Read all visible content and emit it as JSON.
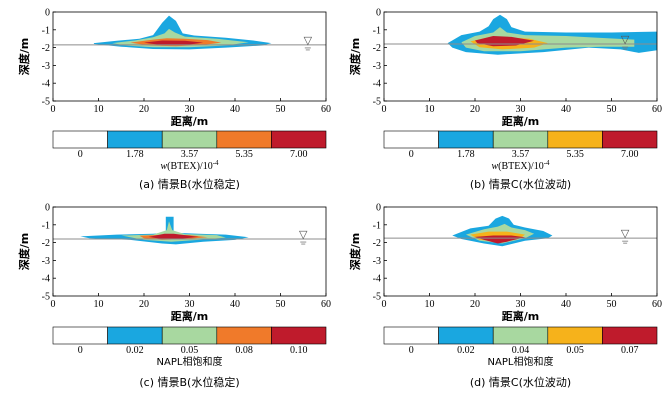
{
  "palette": {
    "axis": "#000000",
    "water_table": "#8c8c8c",
    "bins": [
      "#ffffff",
      "#1aa7e0",
      "#a8d8a0",
      "#f6b21b",
      "#bf1b2c"
    ],
    "orange_bin": "#f07a2a"
  },
  "water_symbol": "▽",
  "chart_data": [
    {
      "type": "heatmap",
      "panel": "a",
      "caption": "(a)  情景B(水位稳定)",
      "xlabel": "距离/m",
      "ylabel": "深度/m",
      "xlim": [
        0,
        60
      ],
      "ylim": [
        -5,
        0
      ],
      "xticks": [
        0,
        10,
        20,
        30,
        40,
        50,
        60
      ],
      "yticks": [
        0,
        -1,
        -2,
        -3,
        -4,
        -5
      ],
      "water_table_depth": -1.85,
      "water_symbol_x": 56,
      "colorbar": {
        "labels": [
          "0",
          "1.78",
          "3.57",
          "5.35",
          "7.00"
        ],
        "colors": [
          "#ffffff",
          "#1aa7e0",
          "#a8d8a0",
          "#f07a2a",
          "#bf1b2c"
        ],
        "title_prefix": "w",
        "title_mid": "(BTEX)/10",
        "title_exp": "-4"
      },
      "layers": [
        {
          "level": 1,
          "points": [
            [
              9,
              -1.75
            ],
            [
              14,
              -1.62
            ],
            [
              19,
              -1.5
            ],
            [
              22,
              -1.3
            ],
            [
              24,
              -0.6
            ],
            [
              25.5,
              -0.2
            ],
            [
              27,
              -0.5
            ],
            [
              28.5,
              -1.2
            ],
            [
              31,
              -1.32
            ],
            [
              38,
              -1.45
            ],
            [
              44,
              -1.6
            ],
            [
              48,
              -1.75
            ],
            [
              46,
              -1.88
            ],
            [
              38,
              -2.0
            ],
            [
              30,
              -2.1
            ],
            [
              22,
              -2.08
            ],
            [
              15,
              -1.95
            ],
            [
              9,
              -1.8
            ]
          ]
        },
        {
          "level": 2,
          "points": [
            [
              13,
              -1.75
            ],
            [
              18,
              -1.6
            ],
            [
              22,
              -1.42
            ],
            [
              24.5,
              -1.2
            ],
            [
              25.5,
              -0.95
            ],
            [
              26.8,
              -1.15
            ],
            [
              29,
              -1.38
            ],
            [
              36,
              -1.5
            ],
            [
              43,
              -1.7
            ],
            [
              38,
              -1.88
            ],
            [
              30,
              -1.98
            ],
            [
              22,
              -1.98
            ],
            [
              16,
              -1.88
            ]
          ]
        },
        {
          "level": 3,
          "points": [
            [
              17,
              -1.72
            ],
            [
              22,
              -1.55
            ],
            [
              25,
              -1.48
            ],
            [
              29,
              -1.5
            ],
            [
              34,
              -1.58
            ],
            [
              37,
              -1.72
            ],
            [
              33,
              -1.85
            ],
            [
              27,
              -1.92
            ],
            [
              21,
              -1.88
            ]
          ]
        },
        {
          "level": 4,
          "points": [
            [
              20,
              -1.72
            ],
            [
              24,
              -1.6
            ],
            [
              29,
              -1.62
            ],
            [
              33,
              -1.72
            ],
            [
              29,
              -1.86
            ],
            [
              24,
              -1.87
            ]
          ]
        }
      ]
    },
    {
      "type": "heatmap",
      "panel": "b",
      "caption": "(b)  情景C(水位波动)",
      "xlabel": "距离/m",
      "ylabel": "深度/m",
      "xlim": [
        0,
        60
      ],
      "ylim": [
        -5,
        0
      ],
      "xticks": [
        0,
        10,
        20,
        30,
        40,
        50,
        60
      ],
      "yticks": [
        0,
        -1,
        -2,
        -3,
        -4,
        -5
      ],
      "water_table_depth": -1.8,
      "water_symbol_x": 53,
      "colorbar": {
        "labels": [
          "0",
          "1.78",
          "3.57",
          "5.35",
          "7.00"
        ],
        "colors": [
          "#ffffff",
          "#1aa7e0",
          "#a8d8a0",
          "#f6b21b",
          "#bf1b2c"
        ],
        "title_prefix": "w",
        "title_mid": "(BTEX)/10",
        "title_exp": "-4"
      },
      "layers": [
        {
          "level": 1,
          "points": [
            [
              14,
              -1.75
            ],
            [
              17,
              -1.3
            ],
            [
              21,
              -1.1
            ],
            [
              23,
              -0.8
            ],
            [
              24,
              -0.4
            ],
            [
              25.5,
              -0.15
            ],
            [
              27,
              -0.4
            ],
            [
              28,
              -0.85
            ],
            [
              31,
              -1.1
            ],
            [
              40,
              -1.15
            ],
            [
              50,
              -1.15
            ],
            [
              60,
              -1.1
            ],
            [
              60,
              -2.15
            ],
            [
              56,
              -2.3
            ],
            [
              52,
              -2.1
            ],
            [
              45,
              -2.0
            ],
            [
              35,
              -2.25
            ],
            [
              25,
              -2.4
            ],
            [
              18,
              -2.25
            ],
            [
              15,
              -2.0
            ]
          ]
        },
        {
          "level": 2,
          "points": [
            [
              17,
              -1.7
            ],
            [
              20,
              -1.35
            ],
            [
              24,
              -1.15
            ],
            [
              25.5,
              -0.85
            ],
            [
              27,
              -1.15
            ],
            [
              31,
              -1.3
            ],
            [
              40,
              -1.35
            ],
            [
              47,
              -1.45
            ],
            [
              55,
              -1.55
            ],
            [
              55,
              -1.95
            ],
            [
              48,
              -1.95
            ],
            [
              40,
              -2.0
            ],
            [
              30,
              -2.2
            ],
            [
              22,
              -2.2
            ],
            [
              18,
              -2.0
            ]
          ]
        },
        {
          "level": 3,
          "points": [
            [
              19,
              -1.65
            ],
            [
              23,
              -1.42
            ],
            [
              27,
              -1.42
            ],
            [
              32,
              -1.5
            ],
            [
              36,
              -1.75
            ],
            [
              33,
              -2.0
            ],
            [
              26,
              -2.1
            ],
            [
              21,
              -1.98
            ]
          ]
        },
        {
          "level": 4,
          "points": [
            [
              20,
              -1.6
            ],
            [
              24,
              -1.35
            ],
            [
              28,
              -1.4
            ],
            [
              33,
              -1.62
            ],
            [
              29,
              -1.88
            ],
            [
              24,
              -1.92
            ],
            [
              20.5,
              -1.75
            ]
          ]
        }
      ]
    },
    {
      "type": "heatmap",
      "panel": "c",
      "caption": "(c)  情景B(水位稳定)",
      "xlabel": "距离/m",
      "ylabel": "深度/m",
      "xlim": [
        0,
        60
      ],
      "ylim": [
        -5,
        0
      ],
      "xticks": [
        0,
        10,
        20,
        30,
        40,
        50,
        60
      ],
      "yticks": [
        0,
        -1,
        -2,
        -3,
        -4,
        -5
      ],
      "water_table_depth": -1.8,
      "water_symbol_x": 55,
      "colorbar": {
        "labels": [
          "0",
          "0.02",
          "0.05",
          "0.08",
          "0.10"
        ],
        "colors": [
          "#ffffff",
          "#1aa7e0",
          "#a8d8a0",
          "#f07a2a",
          "#bf1b2c"
        ],
        "title_prefix": "",
        "title_mid": "NAPL相饱和度",
        "title_exp": ""
      },
      "layers": [
        {
          "level": 1,
          "points": [
            [
              6,
              -1.65
            ],
            [
              14,
              -1.55
            ],
            [
              22,
              -1.5
            ],
            [
              24.8,
              -1.45
            ],
            [
              24.8,
              -0.55
            ],
            [
              26.5,
              -0.55
            ],
            [
              26.5,
              -1.45
            ],
            [
              32,
              -1.5
            ],
            [
              38,
              -1.55
            ],
            [
              43,
              -1.7
            ],
            [
              40,
              -1.85
            ],
            [
              33,
              -1.95
            ],
            [
              27,
              -2.1
            ],
            [
              24,
              -2.05
            ],
            [
              17,
              -1.85
            ],
            [
              8,
              -1.75
            ]
          ]
        },
        {
          "level": 2,
          "points": [
            [
              15,
              -1.6
            ],
            [
              22,
              -1.55
            ],
            [
              25,
              -1.3
            ],
            [
              25.5,
              -0.8
            ],
            [
              26.2,
              -1.3
            ],
            [
              29,
              -1.52
            ],
            [
              36,
              -1.58
            ],
            [
              38,
              -1.72
            ],
            [
              32,
              -1.85
            ],
            [
              26,
              -1.95
            ],
            [
              20,
              -1.85
            ]
          ]
        },
        {
          "level": 3,
          "points": [
            [
              19,
              -1.62
            ],
            [
              25,
              -1.55
            ],
            [
              30,
              -1.58
            ],
            [
              34,
              -1.7
            ],
            [
              29,
              -1.8
            ],
            [
              24,
              -1.85
            ],
            [
              20,
              -1.75
            ]
          ]
        },
        {
          "level": 4,
          "points": [
            [
              21,
              -1.68
            ],
            [
              24.5,
              -1.5
            ],
            [
              26.5,
              -1.5
            ],
            [
              32,
              -1.68
            ],
            [
              28,
              -1.78
            ],
            [
              24,
              -1.8
            ]
          ]
        }
      ]
    },
    {
      "type": "heatmap",
      "panel": "d",
      "caption": "(d)  情景C(水位波动)",
      "xlabel": "距离/m",
      "ylabel": "深度/m",
      "xlim": [
        0,
        60
      ],
      "ylim": [
        -5,
        0
      ],
      "xticks": [
        0,
        10,
        20,
        30,
        40,
        50,
        60
      ],
      "yticks": [
        0,
        -1,
        -2,
        -3,
        -4,
        -5
      ],
      "water_table_depth": -1.75,
      "water_symbol_x": 53,
      "colorbar": {
        "labels": [
          "0",
          "0.02",
          "0.04",
          "0.05",
          "0.07"
        ],
        "colors": [
          "#ffffff",
          "#1aa7e0",
          "#a8d8a0",
          "#f6b21b",
          "#bf1b2c"
        ],
        "title_prefix": "",
        "title_mid": "NAPL相饱和度",
        "title_exp": ""
      },
      "layers": [
        {
          "level": 1,
          "points": [
            [
              15,
              -1.6
            ],
            [
              19,
              -1.2
            ],
            [
              23,
              -1.05
            ],
            [
              24.5,
              -0.65
            ],
            [
              26,
              -0.5
            ],
            [
              27.5,
              -0.65
            ],
            [
              28.5,
              -1.0
            ],
            [
              31,
              -1.15
            ],
            [
              35,
              -1.35
            ],
            [
              37,
              -1.6
            ],
            [
              36,
              -1.75
            ],
            [
              31,
              -1.9
            ],
            [
              26,
              -2.2
            ],
            [
              22,
              -2.05
            ],
            [
              17,
              -1.8
            ]
          ]
        },
        {
          "level": 2,
          "points": [
            [
              18,
              -1.55
            ],
            [
              22,
              -1.25
            ],
            [
              25,
              -1.1
            ],
            [
              26.5,
              -0.95
            ],
            [
              28,
              -1.15
            ],
            [
              31,
              -1.3
            ],
            [
              33,
              -1.5
            ],
            [
              31,
              -1.75
            ],
            [
              26,
              -2.05
            ],
            [
              21,
              -1.9
            ]
          ]
        },
        {
          "level": 3,
          "points": [
            [
              19,
              -1.55
            ],
            [
              23,
              -1.38
            ],
            [
              27,
              -1.38
            ],
            [
              31,
              -1.55
            ],
            [
              30,
              -1.75
            ],
            [
              26,
              -1.95
            ],
            [
              21,
              -1.85
            ]
          ]
        },
        {
          "level": 4,
          "points": [
            [
              20,
              -1.68
            ],
            [
              24,
              -1.6
            ],
            [
              28,
              -1.6
            ],
            [
              31,
              -1.7
            ],
            [
              27,
              -1.95
            ],
            [
              25,
              -2.05
            ],
            [
              22,
              -1.85
            ]
          ]
        }
      ]
    }
  ]
}
